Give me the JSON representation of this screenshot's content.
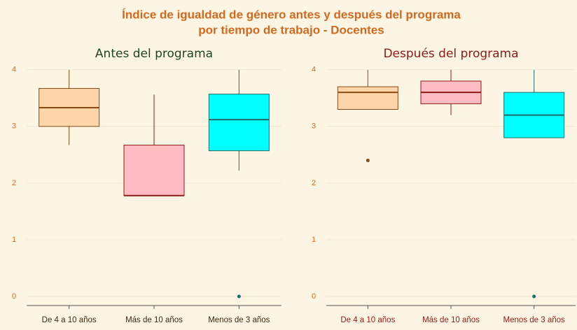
{
  "title": "Índice de igualdad de género antes y después del programa",
  "subtitle": "por tiempo de trabajo - Docentes",
  "chart_data": [
    {
      "type": "boxplot",
      "title": "Antes del programa",
      "title_color": "#1e4620",
      "label_color": "#3a2a10",
      "categories": [
        "De 4 a 10 años",
        "Más de 10 años",
        "Menos de 3 años"
      ],
      "ylim": [
        -0.16,
        4.12
      ],
      "yticks": [
        0,
        1,
        2,
        3,
        4
      ],
      "grid": true,
      "boxes": [
        {
          "min": 2.67,
          "q1": 3.0,
          "median": 3.33,
          "q3": 3.67,
          "max": 4.0,
          "outliers": [],
          "color": "#fdd5a8",
          "line_color": "#8b4a13"
        },
        {
          "min": 1.78,
          "q1": 1.78,
          "median": 1.78,
          "q3": 2.67,
          "max": 3.56,
          "outliers": [],
          "color": "#ffbcc2",
          "line_color": "#8b1a1a"
        },
        {
          "min": 2.22,
          "q1": 2.57,
          "median": 3.12,
          "q3": 3.57,
          "max": 4.0,
          "outliers": [
            0
          ],
          "color": "#00ffff",
          "line_color": "#1d6b6b"
        }
      ]
    },
    {
      "type": "boxplot",
      "title": "Después del programa",
      "title_color": "#8b1a1a",
      "label_color": "#a01818",
      "categories": [
        "De 4 a 10 años",
        "Más de 10 años",
        "Menos de 3 años"
      ],
      "ylim": [
        -0.16,
        4.12
      ],
      "yticks": [
        0,
        1,
        2,
        3,
        4
      ],
      "grid": true,
      "boxes": [
        {
          "min": 3.3,
          "q1": 3.3,
          "median": 3.6,
          "q3": 3.7,
          "max": 4.0,
          "outliers": [
            2.4
          ],
          "color": "#fdd5a8",
          "line_color": "#8b4a13"
        },
        {
          "min": 3.2,
          "q1": 3.4,
          "median": 3.6,
          "q3": 3.8,
          "max": 4.0,
          "outliers": [],
          "color": "#ffbcc2",
          "line_color": "#8b1a1a"
        },
        {
          "min": 2.8,
          "q1": 2.8,
          "median": 3.2,
          "q3": 3.6,
          "max": 4.0,
          "outliers": [
            0
          ],
          "color": "#00ffff",
          "line_color": "#1d6b6b"
        }
      ]
    }
  ]
}
